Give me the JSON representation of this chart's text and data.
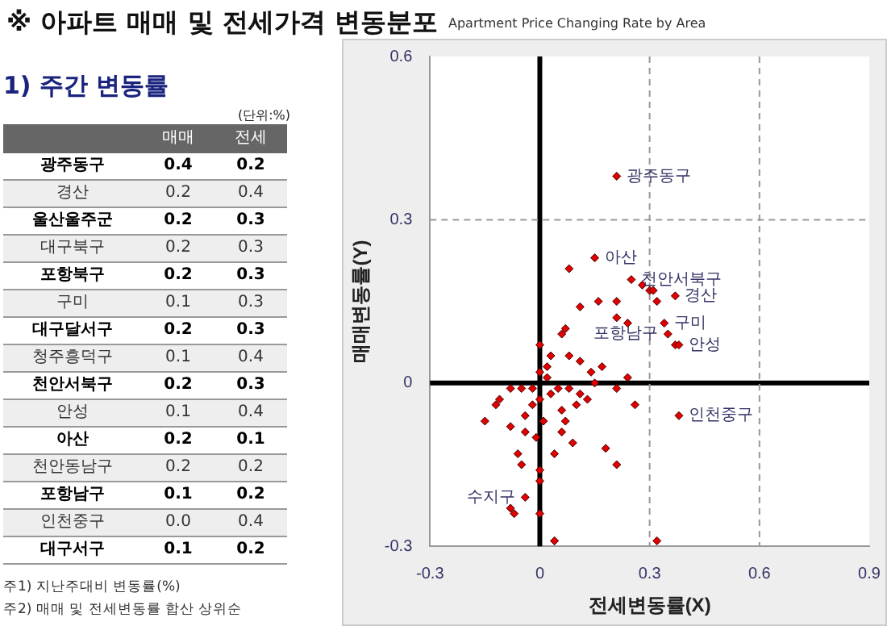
{
  "chart_data": [
    {
      "type": "other",
      "title": "※ 아파트 매매 및 전세가격 변동분포",
      "data_labels": true,
      "annotations": [
        "1) 주간 변동률",
        "(단위:%)",
        "주1) 지난주대비 변동률(%)",
        "주2) 매매 및 전세변동률 합산 상위순"
      ],
      "categories": [
        "광주동구",
        "경산",
        "울산울주군",
        "대구북구",
        "포항북구",
        "구미",
        "대구달서구",
        "청주흥덕구",
        "천안서북구",
        "안성",
        "아산",
        "천안동남구",
        "포항남구",
        "인천중구",
        "대구서구"
      ],
      "series": [
        {
          "name": "매매",
          "values": [
            0.4,
            0.2,
            0.2,
            0.2,
            0.2,
            0.1,
            0.2,
            0.1,
            0.2,
            0.1,
            0.2,
            0.2,
            0.1,
            0.0,
            0.1
          ],
          "value_labels": [
            "0.4",
            "0.2",
            "0.2",
            "0.2",
            "0.2",
            "0.1",
            "0.2",
            "0.1",
            "0.2",
            "0.1",
            "0.2",
            "0.2",
            "0.1",
            "0.0",
            "0.1"
          ]
        },
        {
          "name": "전세",
          "values": [
            0.2,
            0.4,
            0.3,
            0.3,
            0.3,
            0.3,
            0.3,
            0.4,
            0.3,
            0.4,
            0.1,
            0.2,
            0.2,
            0.4,
            0.2
          ],
          "value_labels": [
            "0.2",
            "0.4",
            "0.3",
            "0.3",
            "0.3",
            "0.3",
            "0.3",
            "0.4",
            "0.3",
            "0.4",
            "0.1",
            "0.2",
            "0.2",
            "0.4",
            "0.2"
          ]
        }
      ]
    },
    {
      "type": "scatter",
      "subtitle": "Apartment Price Changing Rate by Area",
      "xlabel": "전세변동률(X)",
      "ylabel": "매매변동률(Y)",
      "color": "#e00000",
      "marker": "diamond",
      "xlim": [
        -0.3,
        0.9
      ],
      "xticks": [
        -0.3,
        0,
        0.3,
        0.6,
        0.9
      ],
      "ylim": [
        -0.3,
        0.6
      ],
      "yticks": [
        -0.3,
        0,
        0.3,
        0.6
      ],
      "grid": false,
      "legend": false,
      "ref_lines": [
        {
          "axis": "x",
          "value": 0,
          "color": "#000000",
          "line_style": "solid"
        },
        {
          "axis": "y",
          "value": 0,
          "color": "#000000",
          "line_style": "solid"
        },
        {
          "axis": "x",
          "value": 0.3,
          "color": "#999999",
          "line_style": "dashed"
        },
        {
          "axis": "y",
          "value": 0.3,
          "color": "#999999",
          "line_style": "dashed"
        },
        {
          "axis": "x",
          "value": 0.6,
          "color": "#999999",
          "line_style": "dashed"
        }
      ],
      "annotations": [
        {
          "text": "광주동구",
          "x": 0.21,
          "y": 0.38
        },
        {
          "text": "아산",
          "x": 0.15,
          "y": 0.23
        },
        {
          "text": "천안서북구",
          "x": 0.25,
          "y": 0.19
        },
        {
          "text": "경산",
          "x": 0.37,
          "y": 0.16
        },
        {
          "text": "구미",
          "x": 0.34,
          "y": 0.11
        },
        {
          "text": "포항남구",
          "x": 0.35,
          "y": 0.09
        },
        {
          "text": "안성",
          "x": 0.38,
          "y": 0.07
        },
        {
          "text": "인천중구",
          "x": 0.38,
          "y": -0.06
        },
        {
          "text": "수지구",
          "x": -0.04,
          "y": -0.21
        }
      ],
      "x": [
        0.21,
        0.08,
        0.15,
        0.25,
        0.28,
        0.3,
        0.31,
        0.32,
        0.37,
        0.11,
        0.16,
        0.21,
        0.34,
        0.21,
        0.24,
        0.35,
        0.37,
        0.38,
        0.07,
        0.06,
        0.0,
        0.08,
        0.11,
        0.17,
        0.14,
        0.24,
        0.03,
        0.02,
        -0.05,
        -0.08,
        -0.11,
        -0.12,
        -0.15,
        -0.08,
        -0.04,
        -0.04,
        -0.06,
        -0.05,
        0.0,
        0.0,
        -0.04,
        -0.08,
        -0.07,
        0.0,
        0.04,
        0.04,
        0.05,
        0.08,
        0.11,
        0.13,
        0.15,
        0.21,
        0.1,
        0.06,
        0.07,
        0.06,
        0.09,
        0.04,
        0.18,
        0.21,
        0.26,
        0.38,
        0.32,
        0.0,
        0.02,
        0.0,
        -0.02,
        0.01,
        -0.01,
        -0.02,
        0.03
      ],
      "values": [
        0.38,
        0.21,
        0.23,
        0.19,
        0.18,
        0.17,
        0.17,
        0.15,
        0.16,
        0.14,
        0.15,
        0.15,
        0.11,
        0.12,
        0.11,
        0.09,
        0.07,
        0.07,
        0.1,
        0.09,
        0.07,
        0.05,
        0.04,
        0.03,
        0.02,
        0.01,
        0.05,
        0.03,
        -0.01,
        -0.01,
        -0.03,
        -0.04,
        -0.07,
        -0.08,
        -0.06,
        -0.09,
        -0.13,
        -0.15,
        -0.16,
        -0.18,
        -0.21,
        -0.23,
        -0.24,
        -0.24,
        -0.29,
        -0.29,
        -0.01,
        -0.01,
        -0.02,
        -0.03,
        0.0,
        -0.01,
        -0.04,
        -0.05,
        -0.07,
        -0.09,
        -0.11,
        -0.13,
        -0.12,
        -0.15,
        -0.04,
        -0.06,
        -0.29,
        0.02,
        0.01,
        -0.03,
        -0.04,
        -0.07,
        -0.1,
        -0.01,
        -0.02
      ]
    }
  ]
}
